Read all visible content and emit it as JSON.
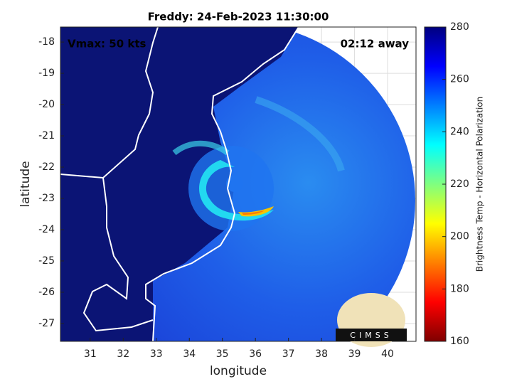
{
  "chart_data": {
    "type": "image",
    "title": "Freddy: 24-Feb-2023 11:30:00",
    "annotations": [
      "Vmax: 50 kts",
      "02:12 away"
    ],
    "x_label": "longitude",
    "y_label": "latitude",
    "xlim": [
      30.1,
      40.86
    ],
    "ylim": [
      -27.57,
      -17.52
    ],
    "xticks": [
      31,
      32,
      33,
      34,
      35,
      36,
      37,
      38,
      39,
      40
    ],
    "yticks": [
      -18,
      -19,
      -20,
      -21,
      -22,
      -23,
      -24,
      -25,
      -26,
      -27
    ],
    "grid": true,
    "colorbar": {
      "label": "Brightness Temp - Horizontal Polarization",
      "lim": [
        160,
        280
      ],
      "ticks": [
        160,
        180,
        200,
        220,
        240,
        260,
        280
      ]
    },
    "logo": "CIMSS"
  }
}
